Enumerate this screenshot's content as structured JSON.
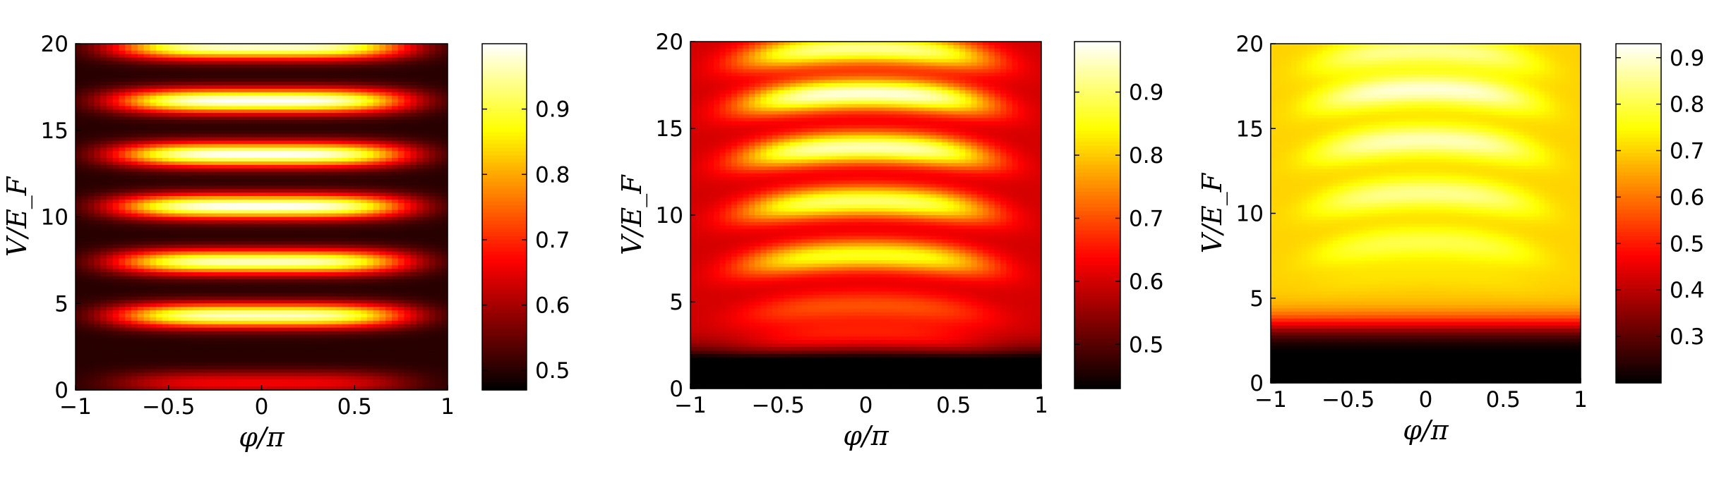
{
  "chart_data": [
    {
      "type": "heatmap",
      "xlabel": "φ/π",
      "ylabel": "V/E_F",
      "xlim": [
        -1,
        1
      ],
      "ylim": [
        0,
        20
      ],
      "x_ticks": [
        "−1",
        "−0.5",
        "0",
        "0.5",
        "1"
      ],
      "y_ticks": [
        "0",
        "5",
        "10",
        "15",
        "20"
      ],
      "colorbar": {
        "min": 0.47,
        "max": 1.0,
        "ticks": [
          "0.5",
          "0.6",
          "0.7",
          "0.8",
          "0.9"
        ]
      },
      "colormap": "hot",
      "grid": false,
      "pattern": {
        "baseline": 0.5,
        "floor_below_V": 0,
        "rise_width_V": 0,
        "fringe_centers_V": [
          0.4,
          4.3,
          7.4,
          10.6,
          13.6,
          16.7,
          19.8
        ],
        "fringe_peaks": [
          0.66,
          0.97,
          0.97,
          1.0,
          1.0,
          1.0,
          0.98
        ],
        "fringe_width_V": 0.7,
        "phi_width": 0.78,
        "curvature_V": 0.0
      }
    },
    {
      "type": "heatmap",
      "xlabel": "φ/π",
      "ylabel": "V/E_F",
      "xlim": [
        -1,
        1
      ],
      "ylim": [
        0,
        20
      ],
      "x_ticks": [
        "−1",
        "−0.5",
        "0",
        "0.5",
        "1"
      ],
      "y_ticks": [
        "0",
        "5",
        "10",
        "15",
        "20"
      ],
      "colorbar": {
        "min": 0.43,
        "max": 0.98,
        "ticks": [
          "0.5",
          "0.6",
          "0.7",
          "0.8",
          "0.9"
        ]
      },
      "colormap": "hot",
      "grid": false,
      "pattern": {
        "baseline": 0.6,
        "floor_below_V": 1.6,
        "rise_width_V": 0.5,
        "fringe_centers_V": [
          3.0,
          4.8,
          7.7,
          10.8,
          13.9,
          17.0,
          19.6
        ],
        "fringe_peaks": [
          0.68,
          0.7,
          0.86,
          0.9,
          0.94,
          0.96,
          0.92
        ],
        "fringe_width_V": 0.9,
        "phi_width": 0.72,
        "curvature_V": 1.3
      }
    },
    {
      "type": "heatmap",
      "xlabel": "φ/π",
      "ylabel": "V/E_F",
      "xlim": [
        -1,
        1
      ],
      "ylim": [
        0,
        20
      ],
      "x_ticks": [
        "−1",
        "−0.5",
        "0",
        "0.5",
        "1"
      ],
      "y_ticks": [
        "0",
        "5",
        "10",
        "15",
        "20"
      ],
      "colorbar": {
        "min": 0.2,
        "max": 0.93,
        "ticks": [
          "0.3",
          "0.4",
          "0.5",
          "0.6",
          "0.7",
          "0.8",
          "0.9"
        ]
      },
      "colormap": "hot",
      "grid": false,
      "pattern": {
        "baseline": 0.7,
        "floor_below_V": 3.4,
        "rise_width_V": 0.5,
        "fringe_centers_V": [
          6.5,
          8.3,
          11.2,
          14.3,
          17.3,
          19.6
        ],
        "fringe_peaks": [
          0.72,
          0.8,
          0.85,
          0.88,
          0.9,
          0.85
        ],
        "fringe_width_V": 0.9,
        "phi_width": 0.7,
        "curvature_V": 1.6
      }
    }
  ]
}
